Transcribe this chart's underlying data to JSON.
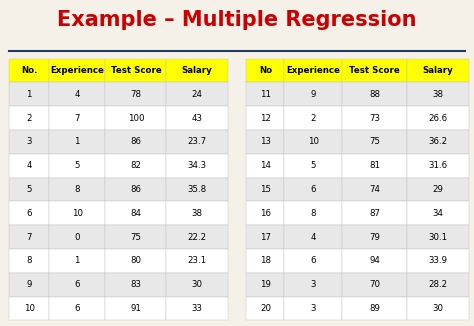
{
  "title": "Example – Multiple Regression",
  "title_color": "#cc0000",
  "bg_color": "#f5f0e8",
  "header_bg": "#ffff00",
  "divider_color": "#1f3864",
  "table1_headers": [
    "No.",
    "Experience",
    "Test Score",
    "Salary"
  ],
  "table2_headers": [
    "No",
    "Experience",
    "Test Score",
    "Salary"
  ],
  "table1_data": [
    [
      1,
      4,
      78,
      24
    ],
    [
      2,
      7,
      100,
      43
    ],
    [
      3,
      1,
      86,
      23.7
    ],
    [
      4,
      5,
      82,
      34.3
    ],
    [
      5,
      8,
      86,
      35.8
    ],
    [
      6,
      10,
      84,
      38
    ],
    [
      7,
      0,
      75,
      22.2
    ],
    [
      8,
      1,
      80,
      23.1
    ],
    [
      9,
      6,
      83,
      30
    ],
    [
      10,
      6,
      91,
      33
    ]
  ],
  "table2_data": [
    [
      11,
      9,
      88,
      38
    ],
    [
      12,
      2,
      73,
      26.6
    ],
    [
      13,
      10,
      75,
      36.2
    ],
    [
      14,
      5,
      81,
      31.6
    ],
    [
      15,
      6,
      74,
      29
    ],
    [
      16,
      8,
      87,
      34
    ],
    [
      17,
      4,
      79,
      30.1
    ],
    [
      18,
      6,
      94,
      33.9
    ],
    [
      19,
      3,
      70,
      28.2
    ],
    [
      20,
      3,
      89,
      30
    ]
  ],
  "row_colors": [
    "#e8e8e8",
    "#ffffff"
  ],
  "text_color": "#000000",
  "border_color": "#c0c0c0"
}
